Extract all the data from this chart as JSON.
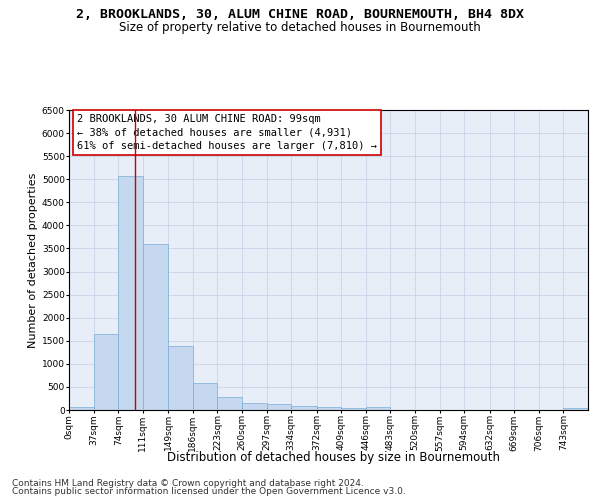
{
  "title": "2, BROOKLANDS, 30, ALUM CHINE ROAD, BOURNEMOUTH, BH4 8DX",
  "subtitle": "Size of property relative to detached houses in Bournemouth",
  "xlabel": "Distribution of detached houses by size in Bournemouth",
  "ylabel": "Number of detached properties",
  "bar_color": "#c5d8ef",
  "bar_edge_color": "#7aadd4",
  "grid_color": "#c8d4e8",
  "background_color": "#e8eef8",
  "bin_labels": [
    "0sqm",
    "37sqm",
    "74sqm",
    "111sqm",
    "149sqm",
    "186sqm",
    "223sqm",
    "260sqm",
    "297sqm",
    "334sqm",
    "372sqm",
    "409sqm",
    "446sqm",
    "483sqm",
    "520sqm",
    "557sqm",
    "594sqm",
    "632sqm",
    "669sqm",
    "706sqm",
    "743sqm"
  ],
  "bin_edges": [
    0,
    37,
    74,
    111,
    149,
    186,
    223,
    260,
    297,
    334,
    372,
    409,
    446,
    483,
    520,
    557,
    594,
    632,
    669,
    706,
    743,
    780
  ],
  "bar_values": [
    55,
    1640,
    5060,
    3600,
    1390,
    590,
    290,
    155,
    125,
    95,
    55,
    35,
    55,
    10,
    8,
    4,
    4,
    2,
    2,
    2,
    45
  ],
  "ylim": [
    0,
    6500
  ],
  "yticks": [
    0,
    500,
    1000,
    1500,
    2000,
    2500,
    3000,
    3500,
    4000,
    4500,
    5000,
    5500,
    6000,
    6500
  ],
  "property_size": 99,
  "red_line_color": "#cc0000",
  "annotation_line1": "2 BROOKLANDS, 30 ALUM CHINE ROAD: 99sqm",
  "annotation_line2": "← 38% of detached houses are smaller (4,931)",
  "annotation_line3": "61% of semi-detached houses are larger (7,810) →",
  "footer_line1": "Contains HM Land Registry data © Crown copyright and database right 2024.",
  "footer_line2": "Contains public sector information licensed under the Open Government Licence v3.0.",
  "title_fontsize": 9.5,
  "subtitle_fontsize": 8.5,
  "ylabel_fontsize": 8,
  "xlabel_fontsize": 8.5,
  "tick_fontsize": 6.5,
  "annotation_fontsize": 7.5,
  "footer_fontsize": 6.5
}
